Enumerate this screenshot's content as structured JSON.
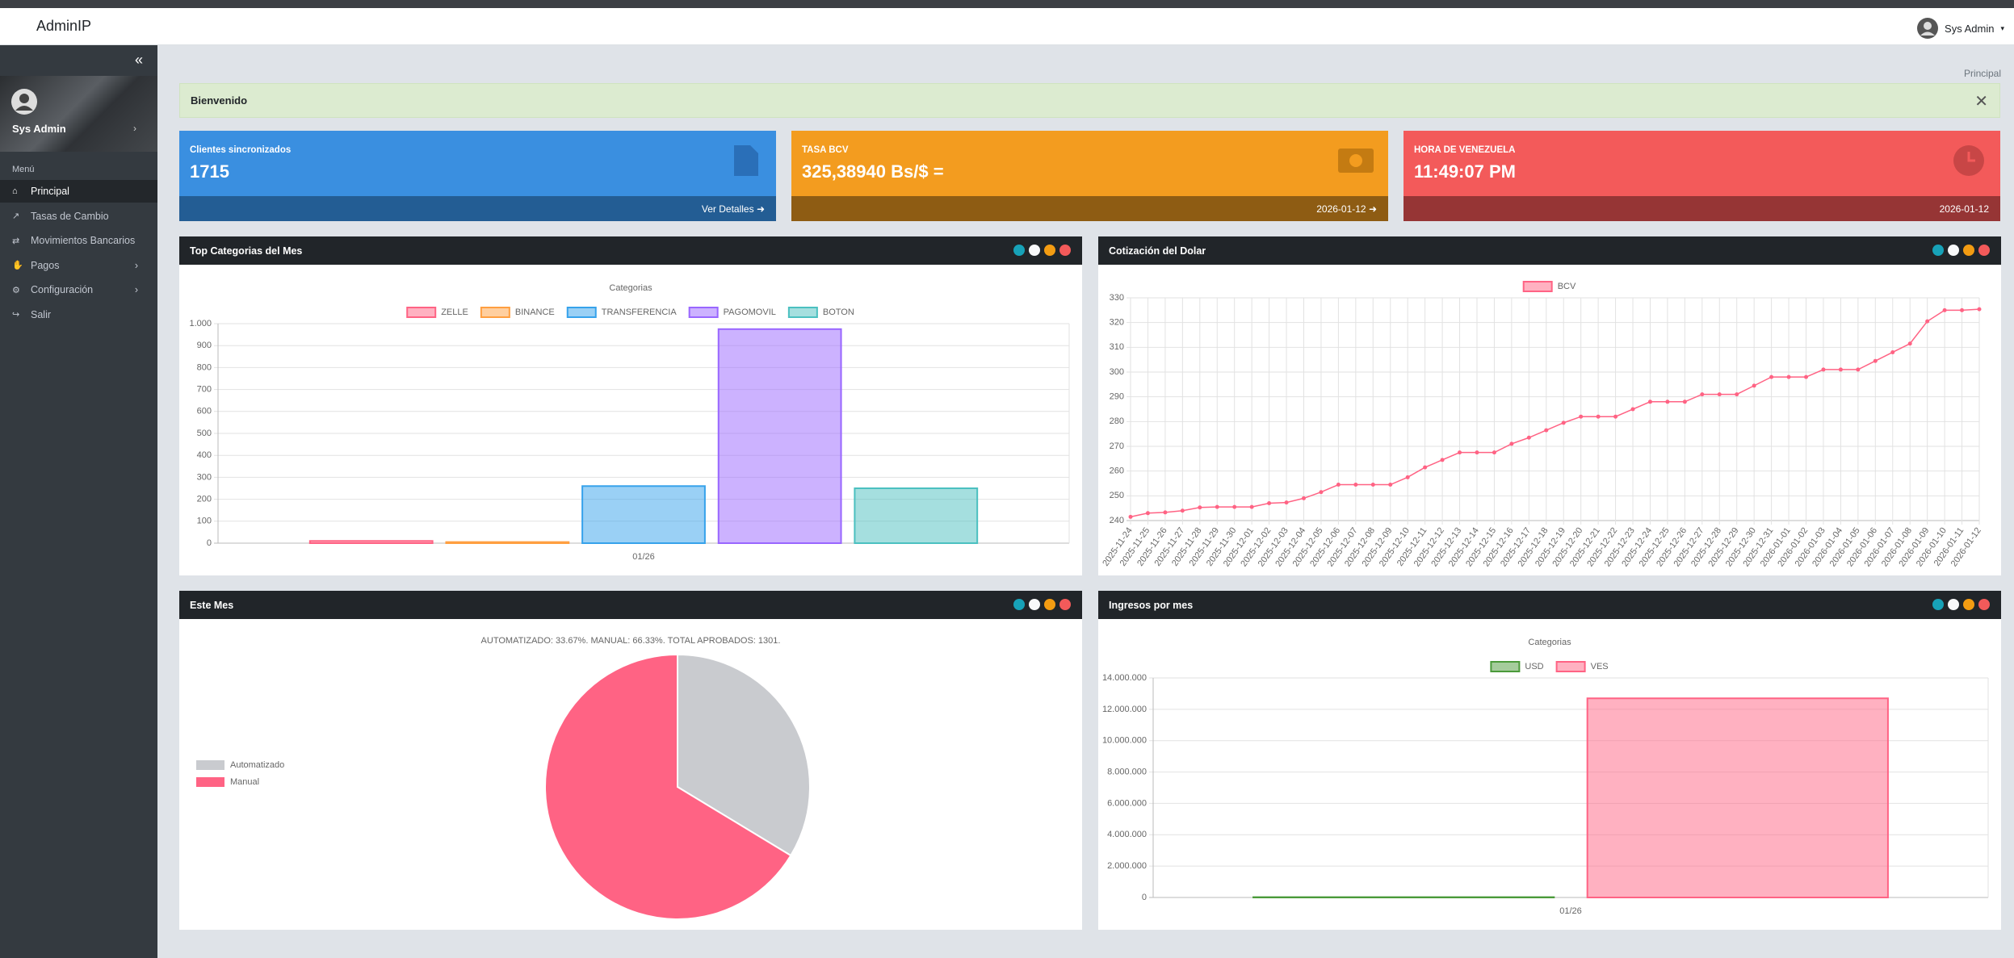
{
  "header": {
    "brand": "AdminIP",
    "user": "Sys Admin"
  },
  "sidebar": {
    "user": "Sys Admin",
    "menu_title": "Menú",
    "items": [
      "Principal",
      "Tasas de Cambio",
      "Movimientos Bancarios",
      "Pagos",
      "Configuración",
      "Salir"
    ]
  },
  "breadcrumb": "Principal",
  "alert": "Bienvenido",
  "cards": [
    {
      "label": "Clientes sincronizados",
      "value": "1715",
      "footer": "Ver Detalles"
    },
    {
      "label": "TASA BCV",
      "value": "325,38940 Bs/$ =",
      "footer": "2026-01-12"
    },
    {
      "label": "HORA DE VENEZUELA",
      "value": "11:49:07 PM",
      "footer": "2026-01-12"
    }
  ],
  "panels": [
    {
      "title": "Top Categorias del Mes",
      "chart": {
        "type": "bar",
        "title": "Categorias",
        "categories": [
          "01/26"
        ],
        "series": [
          {
            "name": "ZELLE",
            "color": "#ff6384",
            "values": [
              10
            ]
          },
          {
            "name": "BINANCE",
            "color": "#ff9f40",
            "values": [
              5
            ]
          },
          {
            "name": "TRANSFERENCIA",
            "color": "#36a2eb",
            "values": [
              260
            ]
          },
          {
            "name": "PAGOMOVIL",
            "color": "#9966ff",
            "values": [
              975
            ]
          },
          {
            "name": "BOTON",
            "color": "#4bc0c0",
            "values": [
              250
            ]
          }
        ],
        "ylim": [
          0,
          1000
        ],
        "yticks": [
          0,
          100,
          200,
          300,
          400,
          500,
          600,
          700,
          800,
          900,
          {
            "value": 1000,
            "label": "1.000"
          }
        ],
        "grid": true,
        "legend": "top"
      }
    },
    {
      "title": "Cotización del Dolar",
      "chart": {
        "type": "line",
        "x": [
          "2025-11-24",
          "2025-11-25",
          "2025-11-26",
          "2025-11-27",
          "2025-11-28",
          "2025-11-29",
          "2025-11-30",
          "2025-12-01",
          "2025-12-02",
          "2025-12-03",
          "2025-12-04",
          "2025-12-05",
          "2025-12-06",
          "2025-12-07",
          "2025-12-08",
          "2025-12-09",
          "2025-12-10",
          "2025-12-11",
          "2025-12-12",
          "2025-12-13",
          "2025-12-14",
          "2025-12-15",
          "2025-12-16",
          "2025-12-17",
          "2025-12-18",
          "2025-12-19",
          "2025-12-20",
          "2025-12-21",
          "2025-12-22",
          "2025-12-23",
          "2025-12-24",
          "2025-12-25",
          "2025-12-26",
          "2025-12-27",
          "2025-12-28",
          "2025-12-29",
          "2025-12-30",
          "2025-12-31",
          "2026-01-01",
          "2026-01-02",
          "2026-01-03",
          "2026-01-04",
          "2026-01-05",
          "2026-01-06",
          "2026-01-07",
          "2026-01-08",
          "2026-01-09",
          "2026-01-10",
          "2026-01-11",
          "2026-01-12"
        ],
        "series": [
          {
            "name": "BCV",
            "color": "#ff6384",
            "values": [
              241.5,
              243,
              243.3,
              244,
              245.3,
              245.5,
              245.5,
              245.5,
              247,
              247.3,
              249,
              251.5,
              254.5,
              254.5,
              254.5,
              254.5,
              257.5,
              261.5,
              264.5,
              267.5,
              267.5,
              267.5,
              271,
              273.5,
              276.5,
              279.5,
              282,
              282,
              282,
              285,
              288,
              288,
              288,
              291,
              291,
              291,
              294.5,
              298,
              298,
              298,
              301,
              301,
              301,
              304.5,
              308,
              311.5,
              320.5,
              325,
              325,
              325.4
            ]
          }
        ],
        "ylim": [
          240,
          330
        ],
        "yticks": [
          240,
          250,
          260,
          270,
          280,
          290,
          300,
          310,
          320,
          330
        ],
        "grid": true,
        "legend": "top"
      }
    },
    {
      "title": "Este Mes",
      "chart": {
        "type": "pie",
        "title": "AUTOMATIZADO: 33.67%. MANUAL: 66.33%. TOTAL APROBADOS: 1301.",
        "categories": [
          "Automatizado",
          "Manual"
        ],
        "values": [
          33.67,
          66.33
        ],
        "colors": [
          "#c9cbcf",
          "#ff6384"
        ],
        "legend": "left"
      }
    },
    {
      "title": "Ingresos por mes",
      "chart": {
        "type": "bar",
        "title": "Categorias",
        "categories": [
          "01/26"
        ],
        "series": [
          {
            "name": "USD",
            "color": "#4b9a3a",
            "values": [
              20000
            ]
          },
          {
            "name": "VES",
            "color": "#ff6384",
            "values": [
              12700000
            ]
          }
        ],
        "ylim": [
          0,
          14000000
        ],
        "yticks": [
          0,
          {
            "value": 2000000,
            "label": "2.000.000"
          },
          {
            "value": 4000000,
            "label": "4.000.000"
          },
          {
            "value": 6000000,
            "label": "6.000.000"
          },
          {
            "value": 8000000,
            "label": "8.000.000"
          },
          {
            "value": 10000000,
            "label": "10.000.000"
          },
          {
            "value": 12000000,
            "label": "12.000.000"
          },
          {
            "value": 14000000,
            "label": "14.000.000"
          }
        ],
        "grid": true,
        "legend": "top"
      }
    }
  ]
}
